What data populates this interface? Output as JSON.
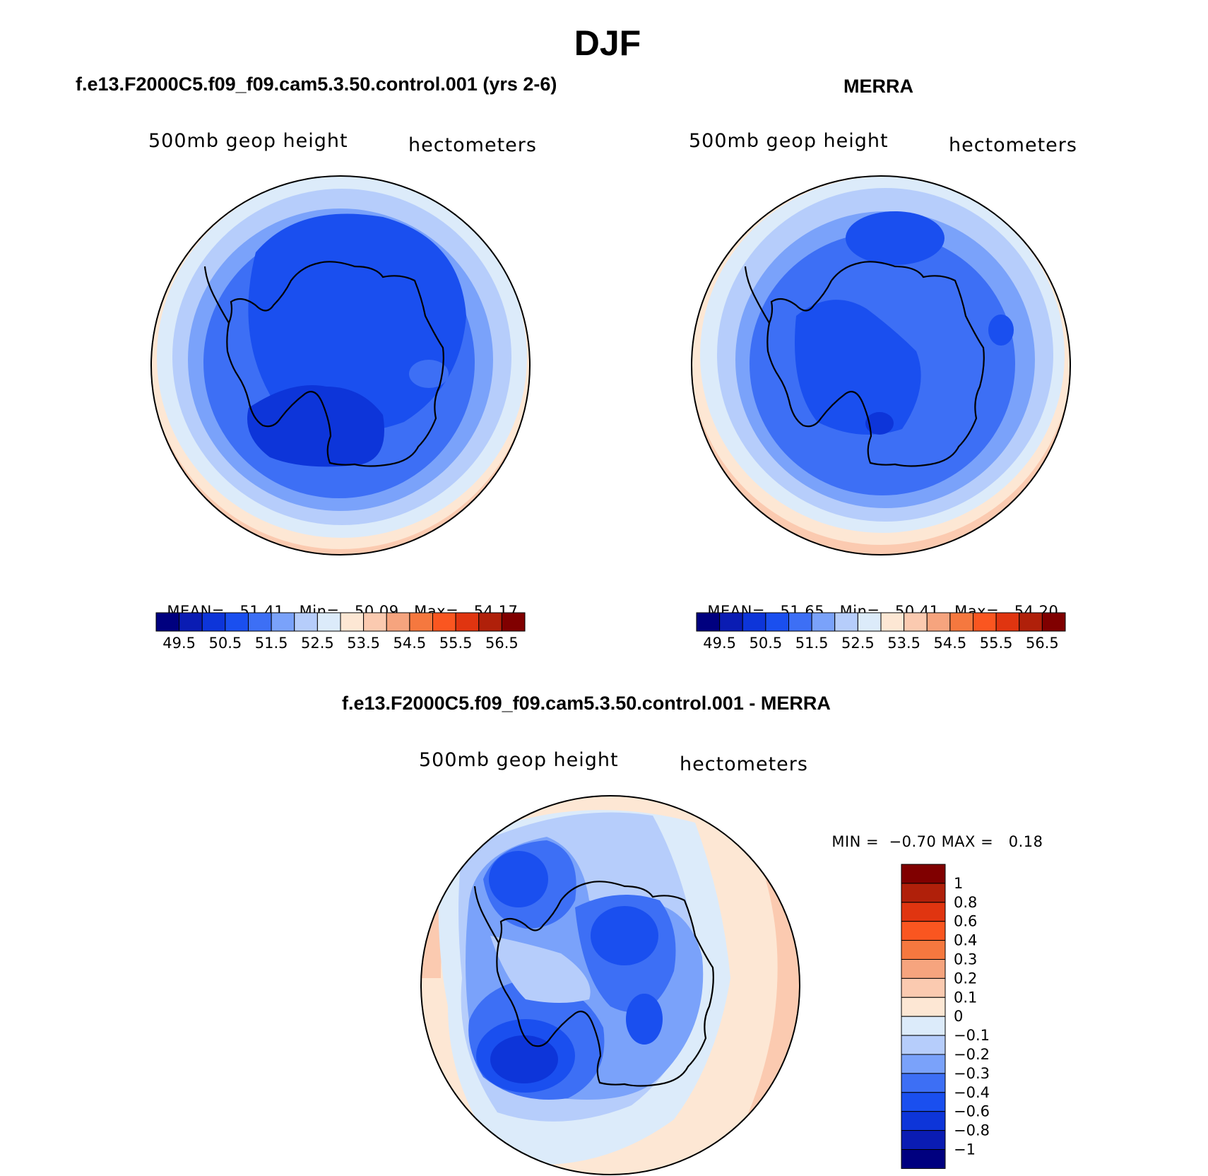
{
  "figure": {
    "title": "DJF"
  },
  "panels": [
    {
      "title": "f.e13.F2000C5.f09_f09.cam5.3.50.control.001 (yrs 2-6)",
      "variable": "500mb geop height",
      "units": "hectometers",
      "stats": {
        "mean_label": "MEAN=",
        "mean": "51.41",
        "min_label": "Min=",
        "min": "50.09",
        "max_label": "Max=",
        "max": "54.17"
      }
    },
    {
      "title": "MERRA",
      "variable": "500mb geop height",
      "units": "hectometers",
      "stats": {
        "mean_label": "MEAN=",
        "mean": "51.65",
        "min_label": "Min=",
        "min": "50.41",
        "max_label": "Max=",
        "max": "54.20"
      }
    },
    {
      "title": "f.e13.F2000C5.f09_f09.cam5.3.50.control.001 - MERRA",
      "variable": "500mb geop height",
      "units": "hectometers",
      "stats": {
        "min_label": "MIN =",
        "min": "−0.70",
        "max_label": "MAX =",
        "max": "0.18"
      }
    }
  ],
  "colorbar_abs": {
    "colors": [
      "#00007f",
      "#0a1cb3",
      "#0d35d9",
      "#1a4fef",
      "#3d6ff5",
      "#7aa2fa",
      "#b6cdfb",
      "#dcebfa",
      "#fde7d4",
      "#fbcab0",
      "#f6a47e",
      "#f5783f",
      "#fa5620",
      "#e03510",
      "#b0200a",
      "#800000"
    ],
    "labels": [
      "49.5",
      "50.5",
      "51.5",
      "52.5",
      "53.5",
      "54.5",
      "55.5",
      "56.5"
    ]
  },
  "colorbar_diff": {
    "colors": [
      "#00007f",
      "#0a1cb3",
      "#0d35d9",
      "#1a4fef",
      "#3d6ff5",
      "#7aa2fa",
      "#b6cdfb",
      "#dcebfa",
      "#fde7d4",
      "#fbcab0",
      "#f6a47e",
      "#f5783f",
      "#fa5620",
      "#e03510",
      "#b0200a",
      "#800000"
    ],
    "labels": [
      "−1",
      "−0.8",
      "−0.6",
      "−0.4",
      "−0.3",
      "−0.2",
      "−0.1",
      "0",
      "0.1",
      "0.2",
      "0.3",
      "0.4",
      "0.6",
      "0.8",
      "1"
    ]
  }
}
